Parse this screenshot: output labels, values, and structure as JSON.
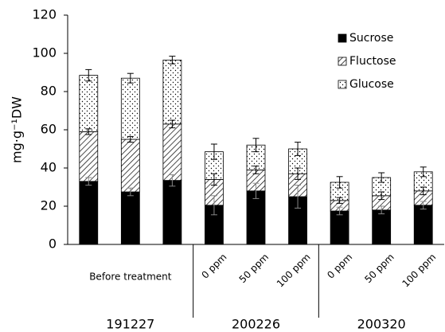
{
  "chart_data": {
    "type": "stacked_bar",
    "y_label": "mg·g⁻¹DW",
    "categories": [
      null,
      "Before treatment",
      null,
      "0 ppm",
      "50 ppm",
      "100 ppm",
      "0 ppm",
      "50 ppm",
      "100 ppm"
    ],
    "groups": [
      "191227",
      "200226",
      "200320"
    ],
    "ylim": [
      0,
      120
    ],
    "yticks": [
      0,
      20,
      40,
      60,
      80,
      100,
      120
    ],
    "legend": "upper right",
    "series": [
      {
        "name": "Sucrose",
        "color": "#000000",
        "pattern": "solid",
        "values": [
          33,
          27.5,
          33.5,
          20.5,
          28,
          25,
          17.5,
          18,
          20.5
        ],
        "errors": [
          2,
          2,
          3,
          5,
          4,
          6,
          2,
          2,
          2
        ]
      },
      {
        "name": "Fluctose",
        "color": "#000000",
        "pattern": "hatch",
        "values": [
          26,
          27.5,
          29.5,
          13.5,
          11,
          12,
          5.5,
          7.5,
          7.5
        ],
        "errors": [
          1.5,
          1.5,
          2,
          3,
          2,
          3,
          1.5,
          2,
          2
        ]
      },
      {
        "name": "Glucose",
        "color": "#000000",
        "pattern": "dots",
        "values": [
          29.5,
          32,
          33.5,
          14.5,
          13,
          13,
          9.5,
          9.5,
          10
        ],
        "errors": [
          3,
          2.5,
          2,
          4,
          3.5,
          3.5,
          3,
          2.5,
          2.5
        ]
      }
    ]
  }
}
